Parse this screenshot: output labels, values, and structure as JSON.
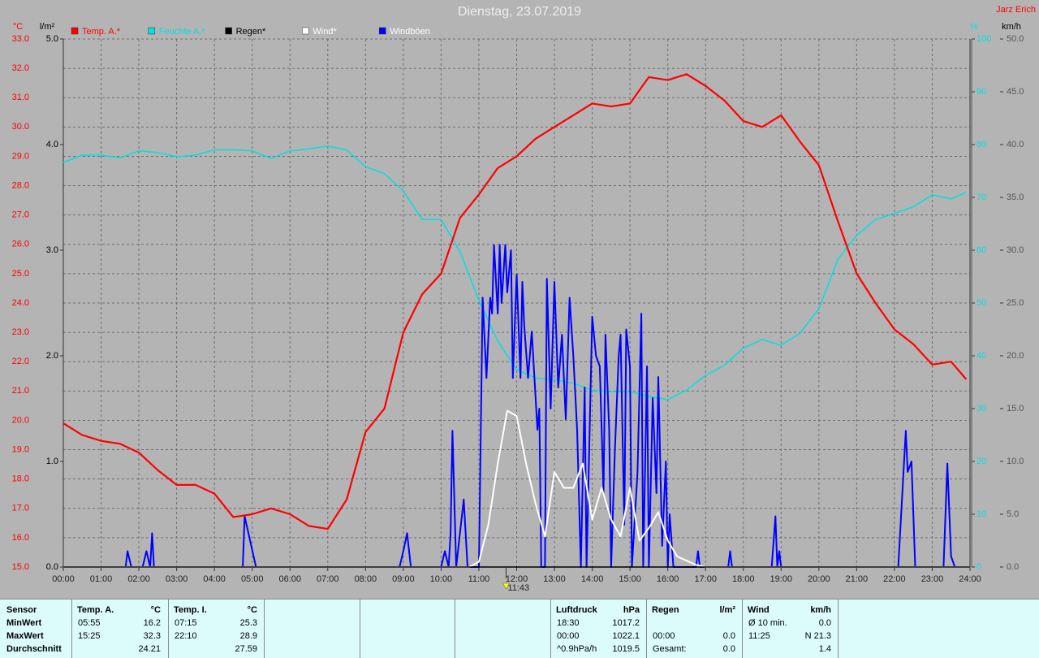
{
  "chart_data": {
    "type": "line",
    "title": "Dienstag, 23.07.2019",
    "author": "Jarz Erich",
    "y_unit": "°C",
    "y4_unit": "l/m²",
    "y2_unit": "%",
    "y3_unit": "km/h",
    "xlim": [
      0,
      24
    ],
    "xticks": [
      {
        "value": 0,
        "label": "00:00"
      },
      {
        "value": 1,
        "label": "01:00"
      },
      {
        "value": 2,
        "label": "02:00"
      },
      {
        "value": 3,
        "label": "03:00"
      },
      {
        "value": 4,
        "label": "04:00"
      },
      {
        "value": 5,
        "label": "05:00"
      },
      {
        "value": 6,
        "label": "06:00"
      },
      {
        "value": 7,
        "label": "07:00"
      },
      {
        "value": 8,
        "label": "08:00"
      },
      {
        "value": 9,
        "label": "09:00"
      },
      {
        "value": 10,
        "label": "10:00"
      },
      {
        "value": 11,
        "label": "11:00"
      },
      {
        "value": 12,
        "label": "12:00"
      },
      {
        "value": 13,
        "label": "13:00"
      },
      {
        "value": 14,
        "label": "14:00"
      },
      {
        "value": 15,
        "label": "15:00"
      },
      {
        "value": 16,
        "label": "16:00"
      },
      {
        "value": 17,
        "label": "17:00"
      },
      {
        "value": 18,
        "label": "18:00"
      },
      {
        "value": 19,
        "label": "19:00"
      },
      {
        "value": 20,
        "label": "20:00"
      },
      {
        "value": 21,
        "label": "21:00"
      },
      {
        "value": 22,
        "label": "22:00"
      },
      {
        "value": 23,
        "label": "23:00"
      },
      {
        "value": 24,
        "label": "24:00"
      }
    ],
    "marker": {
      "value": 11.72,
      "label": "11:43"
    },
    "ylim": [
      15,
      33
    ],
    "yticks": [
      {
        "value": 15,
        "label": "15.0"
      },
      {
        "value": 16,
        "label": "16.0"
      },
      {
        "value": 17,
        "label": "17.0"
      },
      {
        "value": 18,
        "label": "18.0"
      },
      {
        "value": 19,
        "label": "19.0"
      },
      {
        "value": 20,
        "label": "20.0"
      },
      {
        "value": 21,
        "label": "21.0"
      },
      {
        "value": 22,
        "label": "22.0"
      },
      {
        "value": 23,
        "label": "23.0"
      },
      {
        "value": 24,
        "label": "24.0"
      },
      {
        "value": 25,
        "label": "25.0"
      },
      {
        "value": 26,
        "label": "26.0"
      },
      {
        "value": 27,
        "label": "27.0"
      },
      {
        "value": 28,
        "label": "28.0"
      },
      {
        "value": 29,
        "label": "29.0"
      },
      {
        "value": 30,
        "label": "30.0"
      },
      {
        "value": 31,
        "label": "31.0"
      },
      {
        "value": 32,
        "label": "32.0"
      },
      {
        "value": 33,
        "label": "33.0"
      }
    ],
    "y4lim": [
      0,
      5
    ],
    "y4ticks": [
      {
        "value": 0,
        "label": "0.0"
      },
      {
        "value": 1,
        "label": "1.0"
      },
      {
        "value": 2,
        "label": "2.0"
      },
      {
        "value": 3,
        "label": "3.0"
      },
      {
        "value": 4,
        "label": "4.0"
      },
      {
        "value": 5,
        "label": "5.0"
      }
    ],
    "y2lim": [
      0,
      100
    ],
    "y2ticks": [
      0,
      10,
      20,
      30,
      40,
      50,
      60,
      70,
      80,
      90,
      100
    ],
    "y3lim": [
      0,
      50
    ],
    "y3ticks": [
      {
        "value": 0,
        "label": "0.0"
      },
      {
        "value": 5,
        "label": "5.0"
      },
      {
        "value": 10,
        "label": "10.0"
      },
      {
        "value": 15,
        "label": "15.0"
      },
      {
        "value": 20,
        "label": "20.0"
      },
      {
        "value": 25,
        "label": "25.0"
      },
      {
        "value": 30,
        "label": "30.0"
      },
      {
        "value": 35,
        "label": "35.0"
      },
      {
        "value": 40,
        "label": "40.0"
      },
      {
        "value": 45,
        "label": "45.0"
      },
      {
        "value": 50,
        "label": "50.0"
      }
    ],
    "grid": true,
    "series": [
      {
        "name": "Temp. A.*",
        "color": "#ff0000",
        "axis": "y",
        "x": [
          0,
          0.5,
          1,
          1.5,
          2,
          2.5,
          3,
          3.5,
          4,
          4.5,
          5,
          5.5,
          6,
          6.5,
          7,
          7.5,
          8,
          8.5,
          9,
          9.5,
          10,
          10.5,
          11,
          11.5,
          12,
          12.5,
          13,
          13.5,
          14,
          14.5,
          15,
          15.5,
          16,
          16.5,
          17,
          17.5,
          18,
          18.5,
          19,
          19.5,
          20,
          20.5,
          21,
          21.5,
          22,
          22.5,
          23,
          23.5,
          23.9
        ],
        "values": [
          19.9,
          19.5,
          19.3,
          19.2,
          18.9,
          18.3,
          17.8,
          17.8,
          17.5,
          16.7,
          16.8,
          17.0,
          16.8,
          16.4,
          16.3,
          17.3,
          19.6,
          20.4,
          23.0,
          24.3,
          25.0,
          26.9,
          27.7,
          28.6,
          29.0,
          29.6,
          30.0,
          30.4,
          30.8,
          30.7,
          30.8,
          31.7,
          31.6,
          31.8,
          31.4,
          30.9,
          30.2,
          30.0,
          30.4,
          29.5,
          28.7,
          26.8,
          25.0,
          24.0,
          23.1,
          22.6,
          21.9,
          22.0,
          21.4
        ]
      },
      {
        "name": "Feuchte A.*",
        "color": "#00e0e0",
        "axis": "y2",
        "x": [
          0,
          0.5,
          1,
          1.5,
          2,
          2.5,
          3,
          3.5,
          4,
          4.5,
          5,
          5.5,
          6,
          6.5,
          7,
          7.5,
          8,
          8.5,
          9,
          9.5,
          10,
          10.5,
          11,
          11.5,
          12,
          12.5,
          13,
          13.5,
          14,
          14.5,
          15,
          15.5,
          16,
          16.5,
          17,
          17.5,
          18,
          18.5,
          19,
          19.5,
          20,
          20.5,
          21,
          21.5,
          22,
          22.5,
          23,
          23.5,
          23.9
        ],
        "values": [
          76.6,
          78,
          78,
          77.5,
          78.8,
          78.5,
          77.7,
          78,
          79,
          79,
          78.8,
          77.4,
          78.8,
          79.2,
          79.7,
          79,
          75.8,
          74.5,
          71.2,
          65.8,
          65.8,
          59.7,
          50.5,
          42.8,
          37.4,
          35.8,
          35.5,
          34.8,
          33.5,
          33.2,
          33.2,
          32.3,
          31.7,
          33.5,
          36.3,
          38.2,
          41.5,
          43.1,
          42,
          44.3,
          48.9,
          58.2,
          62.8,
          65.8,
          67,
          68.2,
          70.5,
          69.7,
          70.9
        ]
      },
      {
        "name": "Regen*",
        "color": "#000000",
        "axis": "y4",
        "x": [
          0,
          24
        ],
        "values": [
          0,
          0
        ]
      },
      {
        "name": "Wind*",
        "color": "#ffffff",
        "axis": "y3",
        "x": [
          0,
          10.75,
          11,
          11.25,
          11.5,
          11.75,
          12,
          12.25,
          12.5,
          12.75,
          13,
          13.25,
          13.5,
          13.75,
          14,
          14.25,
          14.5,
          14.75,
          15,
          15.25,
          15.5,
          15.75,
          16,
          16.25,
          16.5,
          16.75,
          17,
          24
        ],
        "values": [
          0,
          0,
          0.5,
          4,
          9.8,
          14.8,
          14.3,
          9.8,
          6,
          2.9,
          9,
          7.5,
          7.5,
          9.8,
          4.5,
          7.5,
          4.5,
          2.9,
          7.5,
          2.5,
          3.7,
          5.2,
          2.5,
          1,
          0.6,
          0.2,
          0,
          0
        ]
      },
      {
        "name": "Windböen",
        "color": "#0000ff",
        "label_color": "#ffffff",
        "axis": "y3",
        "x": [
          0,
          1.65,
          1.7,
          1.8,
          2.1,
          2.2,
          2.3,
          2.35,
          2.4,
          4.75,
          4.8,
          5.1,
          8.9,
          9.0,
          9.1,
          9.2,
          10.0,
          10.1,
          10.2,
          10.25,
          10.3,
          10.4,
          10.6,
          10.7,
          11.0,
          11.1,
          11.2,
          11.3,
          11.35,
          11.4,
          11.5,
          11.55,
          11.6,
          11.7,
          11.75,
          11.85,
          11.9,
          12.0,
          12.1,
          12.15,
          12.2,
          12.3,
          12.4,
          12.55,
          12.6,
          12.65,
          12.75,
          12.8,
          12.9,
          13.0,
          13.1,
          13.2,
          13.3,
          13.4,
          13.5,
          13.6,
          13.7,
          13.8,
          13.85,
          14.0,
          14.1,
          14.2,
          14.3,
          14.35,
          14.45,
          14.5,
          14.6,
          14.7,
          14.75,
          14.85,
          14.9,
          15.0,
          15.05,
          15.2,
          15.3,
          15.35,
          15.45,
          15.5,
          15.6,
          15.7,
          15.75,
          15.85,
          15.95,
          16.0,
          16.05,
          16.15,
          16.75,
          16.8,
          16.85,
          17.6,
          17.65,
          17.7,
          18.75,
          18.85,
          18.9,
          18.95,
          19.0,
          22.1,
          22.3,
          22.35,
          22.45,
          22.55,
          23.3,
          23.4,
          23.5,
          23.6,
          24
        ],
        "values": [
          0,
          0,
          1.5,
          0,
          0,
          1.5,
          0,
          3.2,
          0,
          0,
          4.8,
          0,
          0,
          1.5,
          3.2,
          0,
          0,
          1.5,
          0,
          3.2,
          12.9,
          0,
          6.4,
          0,
          0,
          25.5,
          17.9,
          25.5,
          24,
          30.5,
          24,
          30.5,
          25,
          30.5,
          26,
          30,
          17.9,
          27.7,
          17.9,
          27,
          22.9,
          17.9,
          22.3,
          13,
          15,
          0,
          0,
          27.3,
          15,
          27,
          17,
          22,
          14,
          25.5,
          20,
          13,
          0,
          17,
          0,
          23.7,
          20,
          19,
          7,
          22,
          13,
          0,
          11,
          20,
          22,
          4,
          22.5,
          19,
          0,
          9,
          24,
          0,
          19,
          0,
          16,
          7,
          18,
          2,
          10,
          0,
          5,
          0,
          0,
          1.5,
          0,
          0,
          1.5,
          0,
          0,
          4.8,
          0,
          1.5,
          0,
          0,
          12.9,
          9,
          10,
          0,
          0,
          9.8,
          1,
          0,
          0
        ]
      }
    ]
  },
  "table": {
    "row_labels": [
      "Sensor",
      "MinWert",
      "MaxWert",
      "Durchschnitt"
    ],
    "columns": [
      {
        "name": "Temp. A.",
        "unit": "°C",
        "cells": [
          {
            "left": "05:55",
            "right": "16.2"
          },
          {
            "left": "15:25",
            "right": "32.3"
          },
          {
            "right": "24.21"
          }
        ]
      },
      {
        "name": "Temp. I.",
        "unit": "°C",
        "cells": [
          {
            "left": "07:15",
            "right": "25.3"
          },
          {
            "left": "22:10",
            "right": "28.9"
          },
          {
            "right": "27.59"
          }
        ]
      },
      {
        "name": "Luftdruck",
        "unit": "hPa",
        "cells": [
          {
            "left": "18:30",
            "right": "1017.2"
          },
          {
            "left": "00:00",
            "right": "1022.1"
          },
          {
            "left": "^0.9hPa/h",
            "right": "1019.5"
          }
        ]
      },
      {
        "name": "Regen",
        "unit": "l/m²",
        "cells": [
          null,
          {
            "left": "00:00",
            "right": "0.0"
          },
          {
            "left": "Gesamt:",
            "right": "0.0"
          }
        ]
      },
      {
        "name": "Wind",
        "unit": "km/h",
        "cells": [
          {
            "left": "Ø 10 min.",
            "right": "0.0"
          },
          {
            "left": "11:25",
            "right": "N 21.3"
          },
          {
            "right": "1.4"
          }
        ]
      }
    ]
  }
}
